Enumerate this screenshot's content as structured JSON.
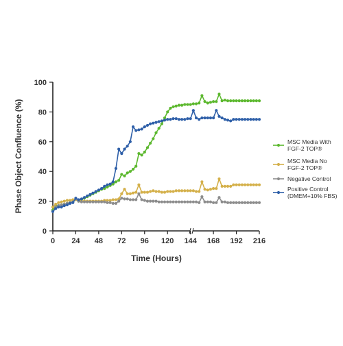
{
  "chart_data": {
    "type": "line",
    "xlabel": "Time (Hours)",
    "ylabel": "Phase Object Confluence (%)",
    "xlim": [
      0,
      216
    ],
    "ylim": [
      0,
      100
    ],
    "x_ticks": [
      0,
      24,
      48,
      72,
      96,
      120,
      144,
      168,
      192,
      216
    ],
    "x_tick_labels": [
      "0",
      "24",
      "48",
      "72",
      "96",
      "120",
      "144",
      "168",
      "192",
      "216"
    ],
    "y_ticks": [
      0,
      20,
      40,
      60,
      80,
      100
    ],
    "y_tick_labels": [
      "0",
      "20",
      "40",
      "60",
      "80",
      "100"
    ],
    "x_axis_break": 145,
    "legend_position": "right",
    "grid": false,
    "x": [
      0,
      3,
      6,
      9,
      12,
      15,
      18,
      21,
      24,
      27,
      30,
      33,
      36,
      39,
      42,
      45,
      48,
      51,
      54,
      57,
      60,
      63,
      66,
      69,
      72,
      75,
      78,
      81,
      84,
      87,
      90,
      93,
      96,
      99,
      102,
      105,
      108,
      111,
      114,
      117,
      120,
      123,
      126,
      129,
      132,
      135,
      138,
      141,
      144,
      147,
      150,
      153,
      156,
      159,
      162,
      165,
      168,
      171,
      174,
      177,
      180,
      183,
      186,
      189,
      192,
      195,
      198,
      201,
      204,
      207,
      210,
      213,
      216
    ],
    "series": [
      {
        "name": "MSC Media With FGF-2 TOP®",
        "color": "#5cb82e",
        "legend_lines": [
          "MSC Media With",
          "FGF-2 TOP®"
        ],
        "values": [
          14,
          17,
          17,
          17.5,
          18,
          18.5,
          19,
          19.5,
          21,
          20,
          21,
          22,
          23,
          24,
          25,
          26,
          27,
          28,
          28.5,
          29.5,
          30.5,
          31.5,
          33,
          34,
          38,
          37,
          39,
          40,
          41.5,
          43.5,
          52,
          51,
          53,
          56,
          59,
          62,
          66,
          69,
          72,
          76,
          80,
          82.5,
          83.5,
          84,
          84.5,
          84.5,
          85,
          85,
          85,
          85.5,
          85.5,
          86,
          91,
          87,
          86,
          86.5,
          87,
          87,
          92,
          87.5,
          88,
          87.5,
          87.5,
          87.5,
          87.5,
          87.5,
          87.5,
          87.5,
          87.5,
          87.5,
          87.5,
          87.5,
          87.5
        ]
      },
      {
        "name": "MSC Media No FGF-2 TOP®",
        "color": "#d4b04a",
        "legend_lines": [
          "MSC Media No",
          "FGF-2 TOP®"
        ],
        "values": [
          16,
          18,
          19,
          19.5,
          20,
          20.5,
          20.5,
          21,
          21,
          20.5,
          20,
          20,
          20,
          20,
          20,
          20,
          20,
          20,
          20.5,
          20.5,
          20.5,
          21,
          21,
          21.5,
          25,
          28,
          25,
          25,
          25.5,
          26,
          31,
          26,
          26,
          26,
          26.5,
          27,
          26.5,
          26.5,
          26,
          26,
          26.5,
          26.5,
          26.5,
          27,
          27,
          27,
          27,
          27,
          27,
          27,
          26.5,
          26.5,
          33,
          28,
          27.5,
          28,
          28.5,
          28.5,
          35,
          30,
          30,
          30,
          30,
          31,
          31,
          31,
          31,
          31,
          31,
          31,
          31,
          31,
          31
        ]
      },
      {
        "name": "Negative Control",
        "color": "#8c8c8c",
        "legend_lines": [
          "Negative Control"
        ],
        "values": [
          13,
          16,
          17,
          17.5,
          18,
          18.5,
          19,
          19.5,
          21.5,
          20,
          19.5,
          19.5,
          19.5,
          19.5,
          19.5,
          19.5,
          19.5,
          19.5,
          19.5,
          19,
          19,
          18.5,
          18.5,
          20,
          22,
          21.5,
          21.5,
          21,
          21,
          21,
          25,
          21,
          20.5,
          20,
          20,
          20,
          20,
          19.5,
          19.5,
          19.5,
          19.5,
          19.5,
          19.5,
          19.5,
          19.5,
          19.5,
          19.5,
          19.5,
          19.5,
          19.5,
          19.5,
          19,
          23,
          19.5,
          19.5,
          19.5,
          19,
          19,
          22.5,
          19.5,
          19.5,
          19,
          19,
          19,
          19,
          19,
          19,
          19,
          19,
          19,
          19,
          19,
          19
        ]
      },
      {
        "name": "Positive Control (DMEM+10% FBS)",
        "color": "#2e5fa8",
        "legend_lines": [
          "Positive Control",
          "(DMEM+10% FBS)"
        ],
        "values": [
          13,
          15,
          16,
          16,
          17,
          17.5,
          18.5,
          19,
          22,
          21,
          21.5,
          22.5,
          23.5,
          24.5,
          25.5,
          26.5,
          27.5,
          28.5,
          30,
          31,
          31.5,
          33,
          42,
          55,
          52,
          55,
          57,
          60,
          70,
          67.5,
          68,
          68.5,
          70,
          71,
          72,
          72.5,
          73,
          73.5,
          74,
          74.5,
          75,
          75,
          75.5,
          75.5,
          75,
          75,
          75,
          75.5,
          75.5,
          81,
          76,
          75,
          76,
          76,
          76,
          76,
          76,
          81,
          77,
          76,
          75,
          74.5,
          74,
          75,
          75,
          75,
          75,
          75,
          75,
          75,
          75,
          75,
          75
        ]
      }
    ]
  }
}
